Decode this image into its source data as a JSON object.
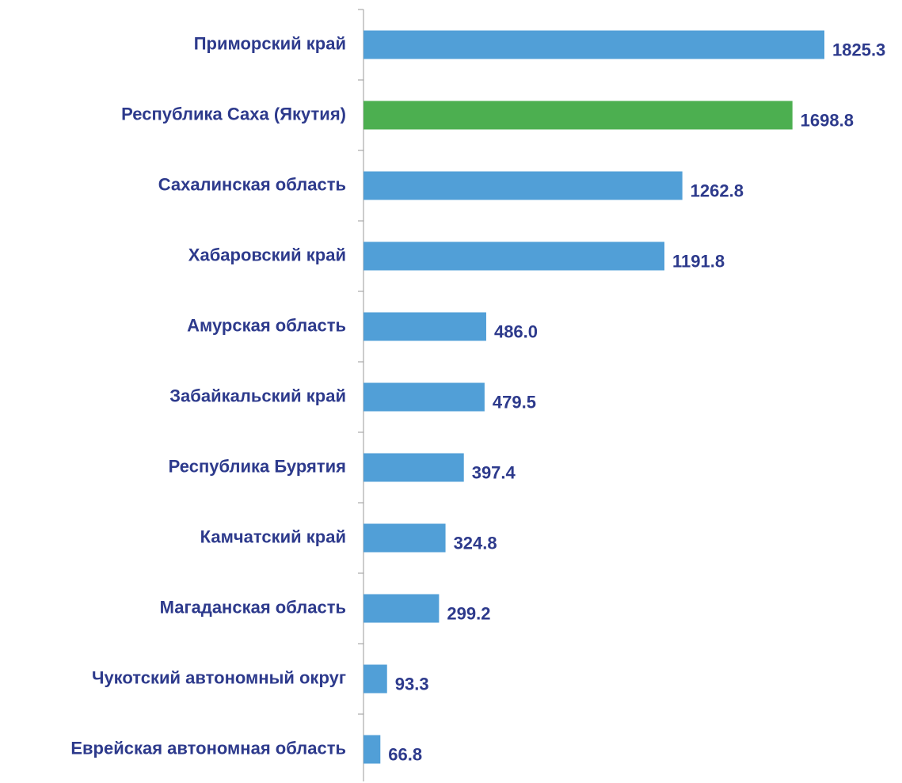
{
  "chart_data": {
    "type": "barh",
    "categories": [
      "Приморский край",
      "Республика Саха (Якутия)",
      "Сахалинская область",
      "Хабаровский край",
      "Амурская область",
      "Забайкальский край",
      "Республика Бурятия",
      "Камчатский край",
      "Магаданская область",
      "Чукотский автономный округ",
      "Еврейская автономная область"
    ],
    "values": [
      1825.3,
      1698.8,
      1262.8,
      1191.8,
      486.0,
      479.5,
      397.4,
      324.8,
      299.2,
      93.3,
      66.8
    ],
    "value_labels": [
      "1825.3",
      "1698.8",
      "1262.8",
      "1191.8",
      "486.0",
      "479.5",
      "397.4",
      "324.8",
      "299.2",
      "93.3",
      "66.8"
    ],
    "colors": [
      "#519fd7",
      "#4caf50",
      "#519fd7",
      "#519fd7",
      "#519fd7",
      "#519fd7",
      "#519fd7",
      "#519fd7",
      "#519fd7",
      "#519fd7",
      "#519fd7"
    ]
  }
}
